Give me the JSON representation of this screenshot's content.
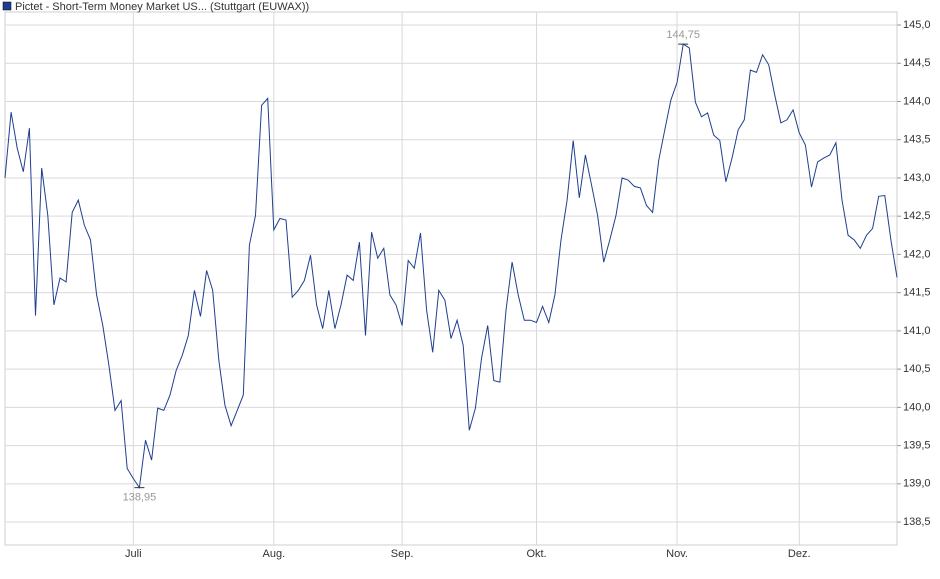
{
  "chart_data": {
    "type": "line",
    "series": [
      {
        "name": "Pictet - Short-Term Money Market US... (Stuttgart (EUWAX))",
        "color": "#1f3f8f",
        "values": [
          143.0,
          143.86,
          143.39,
          143.08,
          143.65,
          141.2,
          143.13,
          142.51,
          141.34,
          141.69,
          141.64,
          142.55,
          142.71,
          142.38,
          142.19,
          141.47,
          141.07,
          140.55,
          139.96,
          140.09,
          139.2,
          139.07,
          138.95,
          139.57,
          139.31,
          139.99,
          139.96,
          140.16,
          140.48,
          140.68,
          140.94,
          141.53,
          141.19,
          141.79,
          141.53,
          140.62,
          140.03,
          139.76,
          139.96,
          140.16,
          142.12,
          142.51,
          143.95,
          144.04,
          142.32,
          142.47,
          142.45,
          141.44,
          141.53,
          141.66,
          141.99,
          141.34,
          141.03,
          141.53,
          141.03,
          141.34,
          141.73,
          141.66,
          142.16,
          140.94,
          142.29,
          141.95,
          142.08,
          141.47,
          141.34,
          141.07,
          141.92,
          141.82,
          142.28,
          141.27,
          140.72,
          141.53,
          141.4,
          140.9,
          141.14,
          140.81,
          139.7,
          139.99,
          140.64,
          141.07,
          140.35,
          140.33,
          141.27,
          141.9,
          141.47,
          141.14,
          141.14,
          141.11,
          141.32,
          141.11,
          141.47,
          142.19,
          142.71,
          143.49,
          142.74,
          143.3,
          142.91,
          142.51,
          141.9,
          142.19,
          142.51,
          143.0,
          142.97,
          142.89,
          142.87,
          142.64,
          142.55,
          143.23,
          143.63,
          144.02,
          144.25,
          144.75,
          144.7,
          143.99,
          143.8,
          143.85,
          143.56,
          143.49,
          142.95,
          143.26,
          143.63,
          143.76,
          144.41,
          144.38,
          144.61,
          144.48,
          144.08,
          143.72,
          143.76,
          143.89,
          143.59,
          143.43,
          142.88,
          143.21,
          143.26,
          143.3,
          143.46,
          142.71,
          142.25,
          142.19,
          142.08,
          142.25,
          142.34,
          142.76,
          142.77,
          142.19,
          141.7
        ]
      }
    ],
    "categories": [
      null,
      null,
      null,
      null,
      null,
      null,
      null,
      null,
      null,
      null,
      null,
      null,
      null,
      null,
      null,
      null,
      null,
      null,
      null,
      null,
      null,
      "Juli",
      null,
      null,
      null,
      null,
      null,
      null,
      null,
      null,
      null,
      null,
      null,
      null,
      null,
      null,
      null,
      null,
      null,
      null,
      null,
      null,
      null,
      null,
      "Aug.",
      null,
      null,
      null,
      null,
      null,
      null,
      null,
      null,
      null,
      null,
      null,
      null,
      null,
      null,
      null,
      null,
      null,
      null,
      null,
      null,
      "Sep.",
      null,
      null,
      null,
      null,
      null,
      null,
      null,
      null,
      null,
      null,
      null,
      null,
      null,
      null,
      null,
      null,
      null,
      null,
      null,
      null,
      null,
      "Okt.",
      null,
      null,
      null,
      null,
      null,
      null,
      null,
      null,
      null,
      null,
      null,
      null,
      null,
      null,
      null,
      null,
      null,
      null,
      null,
      null,
      null,
      null,
      "Nov.",
      null,
      null,
      null,
      null,
      null,
      null,
      null,
      null,
      null,
      null,
      null,
      null,
      null,
      null,
      null,
      null,
      null,
      null,
      null,
      "Dez.",
      null,
      null,
      null,
      null,
      null,
      null,
      null,
      null,
      null,
      null,
      null,
      null,
      null,
      null,
      null,
      null
    ],
    "annotations": [
      {
        "label": "144,75",
        "value": 144.75
      },
      {
        "label": "138,95",
        "value": 138.95
      }
    ],
    "ylim": [
      138.2,
      145.17
    ],
    "yticks": [
      {
        "value": 138.5,
        "label": "138,5"
      },
      {
        "value": 139,
        "label": "139,0"
      },
      {
        "value": 139.5,
        "label": "139,5"
      },
      {
        "value": 140,
        "label": "140,0"
      },
      {
        "value": 140.5,
        "label": "140,5"
      },
      {
        "value": 141,
        "label": "141,0"
      },
      {
        "value": 141.5,
        "label": "141,5"
      },
      {
        "value": 142,
        "label": "142,0"
      },
      {
        "value": 142.5,
        "label": "142,5"
      },
      {
        "value": 143,
        "label": "143,0"
      },
      {
        "value": 143.5,
        "label": "143,5"
      },
      {
        "value": 144,
        "label": "144,0"
      },
      {
        "value": 144.5,
        "label": "144,5"
      },
      {
        "value": 145,
        "label": "145,0"
      }
    ],
    "grid": true,
    "legend": "top-left"
  }
}
